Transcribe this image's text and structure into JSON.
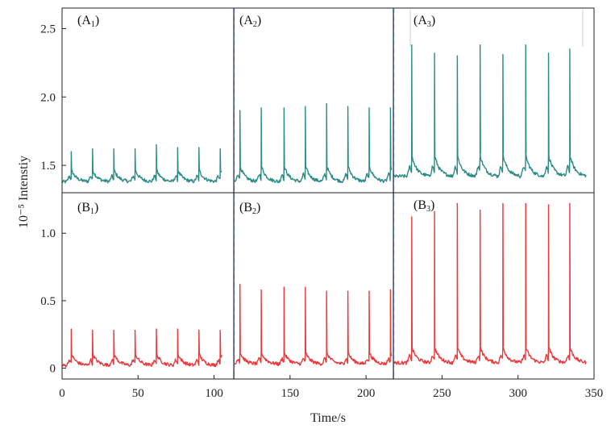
{
  "chart_data": {
    "type": "line",
    "xlabel": "Time/s",
    "ylabel": "10⁻⁵ Intenstiy",
    "xlim": [
      0,
      350
    ],
    "x_ticks": [
      0,
      50,
      100,
      150,
      200,
      250,
      300,
      350
    ],
    "x_tick_labels": [
      "0",
      "50",
      "100",
      "150",
      "200",
      "250",
      "300",
      "350"
    ],
    "dividers_x": [
      113,
      218
    ],
    "colors": {
      "A": "#2a8b86",
      "B": "#e8393b"
    },
    "panel_labels": [
      {
        "id": "A1",
        "main": "(A",
        "sub": "1",
        "close": ")"
      },
      {
        "id": "A2",
        "main": "(A",
        "sub": "2",
        "close": ")"
      },
      {
        "id": "A3",
        "main": "(A",
        "sub": "3",
        "close": ")"
      },
      {
        "id": "B1",
        "main": "(B",
        "sub": "1",
        "close": ")"
      },
      {
        "id": "B2",
        "main": "(B",
        "sub": "2",
        "close": ")"
      },
      {
        "id": "B3",
        "main": "(B",
        "sub": "3",
        "close": ")"
      }
    ],
    "top": {
      "ylim": [
        1.3,
        2.65
      ],
      "y_ticks": [
        1.5,
        2.0,
        2.5
      ],
      "y_tick_labels": [
        "1.5",
        "2.0",
        "2.5"
      ],
      "series": [
        {
          "name": "A1",
          "baseline": 1.38,
          "x_range": [
            0,
            105
          ],
          "peaks_x": [
            6,
            20,
            34,
            48,
            62,
            76,
            90,
            104
          ],
          "peaks_y": [
            1.6,
            1.62,
            1.62,
            1.62,
            1.65,
            1.63,
            1.63,
            1.62
          ]
        },
        {
          "name": "A2",
          "baseline": 1.38,
          "x_range": [
            113,
            217
          ],
          "peaks_x": [
            117,
            131,
            146,
            160,
            174,
            188,
            202,
            216
          ],
          "peaks_y": [
            1.9,
            1.92,
            1.92,
            1.93,
            1.95,
            1.93,
            1.92,
            1.92
          ]
        },
        {
          "name": "A3",
          "baseline": 1.42,
          "x_range": [
            218,
            345
          ],
          "peaks_x": [
            230,
            245,
            260,
            275,
            290,
            305,
            320,
            334
          ],
          "peaks_y": [
            2.38,
            2.32,
            2.3,
            2.38,
            2.31,
            2.38,
            2.32,
            2.35
          ]
        }
      ]
    },
    "bottom": {
      "ylim": [
        -0.08,
        1.3
      ],
      "y_ticks": [
        0,
        0.5,
        1.0
      ],
      "y_tick_labels": [
        "0",
        "0.5",
        "1.0"
      ],
      "series": [
        {
          "name": "B1",
          "baseline": 0.02,
          "x_range": [
            0,
            105
          ],
          "peaks_x": [
            6,
            20,
            34,
            48,
            62,
            76,
            90,
            104
          ],
          "peaks_y": [
            0.29,
            0.28,
            0.28,
            0.28,
            0.29,
            0.29,
            0.28,
            0.28
          ]
        },
        {
          "name": "B2",
          "baseline": 0.03,
          "x_range": [
            113,
            217
          ],
          "peaks_x": [
            117,
            131,
            146,
            160,
            174,
            188,
            202,
            216
          ],
          "peaks_y": [
            0.62,
            0.58,
            0.6,
            0.6,
            0.57,
            0.57,
            0.57,
            0.58
          ]
        },
        {
          "name": "B3",
          "baseline": 0.04,
          "x_range": [
            218,
            345
          ],
          "peaks_x": [
            230,
            245,
            260,
            275,
            290,
            305,
            320,
            334
          ],
          "peaks_y": [
            1.12,
            1.16,
            1.22,
            1.17,
            1.22,
            1.22,
            1.21,
            1.22
          ]
        }
      ]
    }
  }
}
